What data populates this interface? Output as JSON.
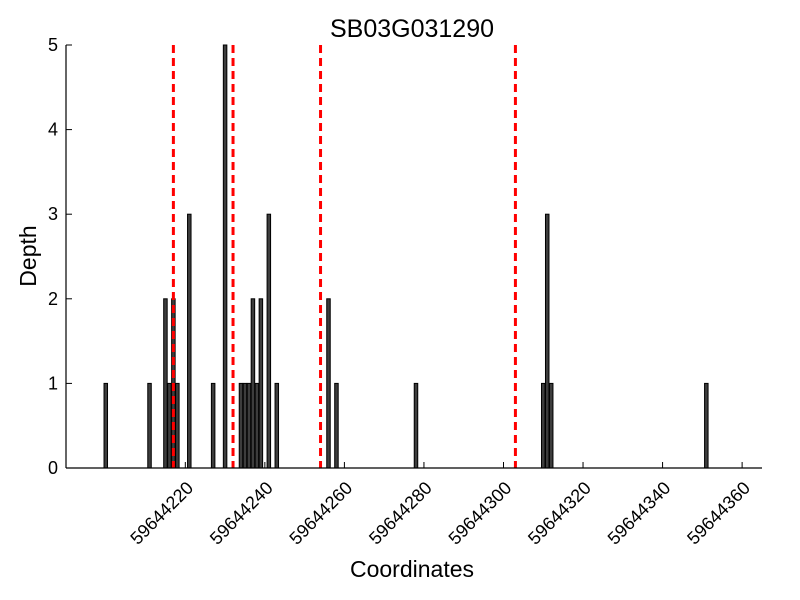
{
  "chart_data": {
    "type": "bar",
    "title": "SB03G031290",
    "xlabel": "Coordinates",
    "ylabel": "Depth",
    "xlim": [
      59644190,
      59644365
    ],
    "ylim": [
      0,
      5
    ],
    "x_ticks": [
      59644220,
      59644240,
      59644260,
      59644280,
      59644300,
      59644320,
      59644340,
      59644360
    ],
    "y_ticks": [
      0,
      1,
      2,
      3,
      4,
      5
    ],
    "x_tick_labels": [
      "59644220",
      "59644240",
      "59644260",
      "59644280",
      "59644300",
      "59644320",
      "59644340",
      "59644360"
    ],
    "y_tick_labels": [
      "0",
      "1",
      "2",
      "3",
      "4",
      "5"
    ],
    "grid": false,
    "legend": "none",
    "series": [
      {
        "x": [
          59644200,
          59644211,
          59644215,
          59644216,
          59644217,
          59644218,
          59644221,
          59644227,
          59644230,
          59644234,
          59644235,
          59644236,
          59644237,
          59644238,
          59644239,
          59644241,
          59644243,
          59644256,
          59644258,
          59644278,
          59644310,
          59644311,
          59644312,
          59644351
        ],
        "values": [
          1,
          1,
          2,
          1,
          2,
          1,
          3,
          1,
          5,
          1,
          1,
          1,
          2,
          1,
          2,
          3,
          1,
          2,
          1,
          1,
          1,
          3,
          1,
          1
        ]
      }
    ],
    "reference_lines": [
      59644217,
      59644232,
      59644254,
      59644303
    ],
    "colors": {
      "bar_fill": "#3d3d3d",
      "bar_stroke": "#000000",
      "reference_line": "#ff0000",
      "axis": "#000000"
    }
  }
}
